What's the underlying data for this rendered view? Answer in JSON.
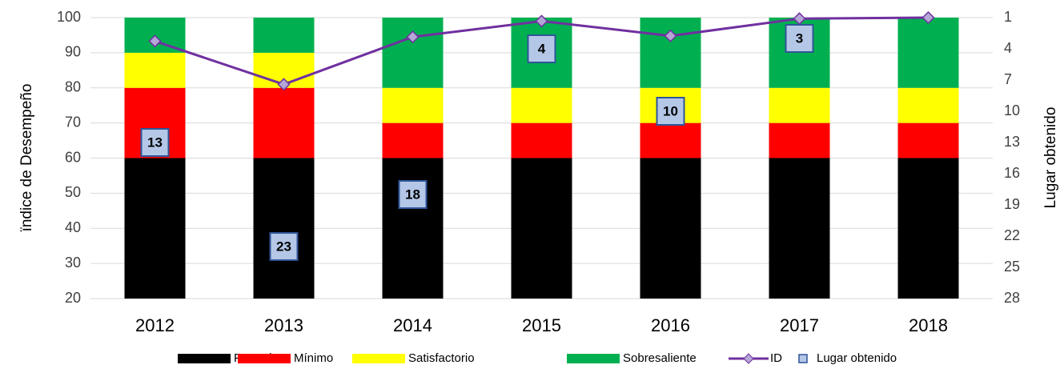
{
  "chart_data": {
    "type": "bar",
    "categories": [
      "2012",
      "2013",
      "2014",
      "2015",
      "2016",
      "2017",
      "2018"
    ],
    "y_label": "ïndice de Desempeño",
    "y2_label": "Lugar obtenido",
    "ylim": [
      20,
      100
    ],
    "yticks": [
      20,
      30,
      40,
      50,
      60,
      70,
      80,
      90,
      100
    ],
    "y2lim": [
      28,
      1
    ],
    "y2ticks": [
      1,
      4,
      7,
      10,
      13,
      16,
      19,
      22,
      25,
      28
    ],
    "grid": true,
    "legend": "bottom",
    "stacked": true,
    "series": [
      {
        "name": "Precario",
        "type": "bar",
        "color": "#000000",
        "values": [
          60,
          60,
          60,
          60,
          60,
          60,
          60
        ]
      },
      {
        "name": "Mínimo",
        "type": "bar",
        "color": "#ff0000",
        "values": [
          20,
          20,
          10,
          10,
          10,
          10,
          10
        ]
      },
      {
        "name": "Satisfactorio",
        "type": "bar",
        "color": "#ffff00",
        "values": [
          10,
          10,
          10,
          10,
          10,
          10,
          10
        ]
      },
      {
        "name": "Sobresaliente",
        "type": "bar",
        "color": "#00b050",
        "values": [
          10,
          10,
          20,
          20,
          20,
          20,
          20
        ]
      },
      {
        "name": "ID",
        "type": "line",
        "color": "#7030a0",
        "values": [
          93.3,
          81,
          94.5,
          99,
          94.8,
          99.7,
          100
        ]
      },
      {
        "name": "Lugar obtenido",
        "type": "marker",
        "axis": "y2",
        "color": "#b4c7e7",
        "values": [
          13,
          23,
          18,
          4,
          10,
          3,
          null
        ]
      }
    ]
  }
}
